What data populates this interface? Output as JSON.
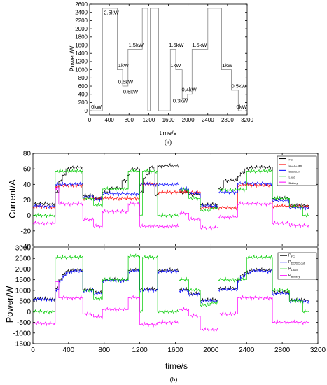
{
  "chart_data": [
    {
      "type": "line",
      "caption": "(a)",
      "xlabel": "time/s",
      "ylabel": "Power/W",
      "xlim": [
        0,
        3200
      ],
      "ylim": [
        -100,
        2600
      ],
      "xticks": [
        "0",
        "400",
        "800",
        "1200",
        "1600",
        "2000",
        "2400",
        "2800",
        "3200"
      ],
      "yticks": [
        "0",
        "200",
        "400",
        "600",
        "800",
        "1000",
        "1200",
        "1400",
        "1600",
        "1800",
        "2000",
        "2200",
        "2400",
        "2600"
      ],
      "series": [
        {
          "name": "",
          "color": "#888888",
          "x": [
            0,
            260,
            260,
            560,
            560,
            670,
            670,
            780,
            780,
            1070,
            1070,
            1180,
            1180,
            1230,
            1230,
            1400,
            1400,
            1640,
            1640,
            1750,
            1750,
            1880,
            1880,
            1990,
            1990,
            2080,
            2080,
            2400,
            2400,
            2680,
            2680,
            2880,
            2880,
            3020,
            3020,
            3100
          ],
          "y": [
            0,
            0,
            2500,
            2500,
            1000,
            1000,
            600,
            600,
            1500,
            1500,
            2500,
            2500,
            0,
            0,
            2500,
            2500,
            0,
            0,
            1500,
            1500,
            1000,
            1000,
            300,
            300,
            400,
            400,
            1500,
            1500,
            2500,
            2500,
            1000,
            1000,
            500,
            500,
            0,
            0
          ]
        }
      ],
      "annotations": [
        {
          "text": "0kW",
          "x": 30,
          "y": 50
        },
        {
          "text": "2.5kW",
          "x": 290,
          "y": 2350
        },
        {
          "text": "1kW",
          "x": 580,
          "y": 1060
        },
        {
          "text": "0.6kW",
          "x": 580,
          "y": 660
        },
        {
          "text": "0.5kW",
          "x": 680,
          "y": 420
        },
        {
          "text": "1.5kW",
          "x": 790,
          "y": 1560
        },
        {
          "text": "1.5kW",
          "x": 1610,
          "y": 1560
        },
        {
          "text": "1kW",
          "x": 1640,
          "y": 1060
        },
        {
          "text": "0.4kW",
          "x": 1870,
          "y": 470
        },
        {
          "text": "0.3kW",
          "x": 1690,
          "y": 200
        },
        {
          "text": "1.5kW",
          "x": 2080,
          "y": 1560
        },
        {
          "text": "1kW",
          "x": 2690,
          "y": 1060
        },
        {
          "text": "0.5kW",
          "x": 2880,
          "y": 560
        },
        {
          "text": "0kW",
          "x": 2980,
          "y": 50
        }
      ]
    },
    {
      "type": "line",
      "caption": "",
      "xlabel": "",
      "ylabel": "Current/A",
      "xlim": [
        0,
        3200
      ],
      "ylim": [
        -40,
        80
      ],
      "yticks": [
        "-40",
        "-20",
        "0",
        "20",
        "40",
        "60",
        "80"
      ],
      "legend_position": "top-right",
      "series": [
        {
          "name": "IFC",
          "color": "#000000",
          "x": [
            0,
            250,
            250,
            290,
            290,
            330,
            330,
            370,
            370,
            420,
            420,
            560,
            560,
            680,
            680,
            780,
            780,
            860,
            860,
            1000,
            1000,
            1060,
            1060,
            1090,
            1090,
            1200,
            1200,
            1240,
            1240,
            1270,
            1270,
            1310,
            1310,
            1370,
            1370,
            1400,
            1400,
            1640,
            1640,
            1750,
            1750,
            1880,
            1880,
            2080,
            2080,
            2140,
            2140,
            2300,
            2300,
            2330,
            2330,
            2380,
            2380,
            2430,
            2430,
            2690,
            2690,
            2880,
            2880,
            3100
          ],
          "y": [
            15,
            15,
            30,
            30,
            44,
            44,
            52,
            52,
            60,
            60,
            62,
            62,
            26,
            26,
            22,
            22,
            30,
            30,
            35,
            35,
            45,
            45,
            52,
            52,
            60,
            60,
            30,
            30,
            48,
            48,
            53,
            53,
            62,
            62,
            26,
            26,
            64,
            64,
            30,
            30,
            27,
            27,
            14,
            14,
            35,
            35,
            45,
            45,
            50,
            50,
            55,
            55,
            60,
            60,
            62,
            62,
            22,
            22,
            13,
            13
          ]
        },
        {
          "name": "IDCDC,out",
          "color": "#ff0000",
          "x": [
            0,
            250,
            250,
            560,
            560,
            1200,
            1200,
            1400,
            1400,
            1880,
            1880,
            2300,
            2300,
            2690,
            2690,
            3100
          ],
          "y": [
            11,
            11,
            38,
            38,
            22,
            22,
            40,
            40,
            30,
            30,
            10,
            10,
            39,
            39,
            12,
            12
          ]
        },
        {
          "name": "IDCDC,in",
          "color": "#0000ff",
          "x": [
            0,
            250,
            250,
            560,
            560,
            680,
            680,
            780,
            780,
            1200,
            1200,
            1400,
            1400,
            1640,
            1640,
            1750,
            1750,
            1880,
            1880,
            2080,
            2080,
            2300,
            2300,
            2690,
            2690,
            2880,
            2880,
            3100
          ],
          "y": [
            12,
            12,
            40,
            40,
            24,
            24,
            20,
            20,
            28,
            28,
            40,
            40,
            40,
            40,
            34,
            34,
            28,
            28,
            12,
            12,
            30,
            30,
            41,
            41,
            19,
            19,
            10,
            10
          ]
        },
        {
          "name": "ILoad",
          "color": "#00cc00",
          "x": [
            0,
            250,
            250,
            560,
            560,
            680,
            680,
            780,
            780,
            1070,
            1070,
            1200,
            1200,
            1230,
            1230,
            1400,
            1400,
            1640,
            1640,
            1750,
            1750,
            1880,
            1880,
            1990,
            1990,
            2080,
            2080,
            2400,
            2400,
            2690,
            2690,
            2880,
            2880,
            3030,
            3030,
            3100
          ],
          "y": [
            0,
            0,
            57,
            57,
            22,
            22,
            13,
            13,
            34,
            34,
            57,
            57,
            0,
            0,
            57,
            57,
            0,
            0,
            33,
            33,
            22,
            22,
            6,
            6,
            9,
            9,
            33,
            33,
            57,
            57,
            22,
            22,
            11,
            11,
            0,
            0
          ]
        },
        {
          "name": "IBattery",
          "color": "#ff00ff",
          "x": [
            0,
            250,
            250,
            290,
            290,
            560,
            560,
            680,
            680,
            780,
            780,
            1070,
            1070,
            1200,
            1200,
            1400,
            1400,
            1640,
            1640,
            1750,
            1750,
            1880,
            1880,
            2080,
            2080,
            2300,
            2300,
            2690,
            2690,
            2880,
            2880,
            3100
          ],
          "y": [
            -10,
            -10,
            35,
            35,
            15,
            15,
            -5,
            -5,
            -14,
            -14,
            5,
            5,
            15,
            15,
            -14,
            -14,
            -14,
            -14,
            3,
            3,
            -5,
            -5,
            -16,
            -16,
            -2,
            -2,
            15,
            15,
            -10,
            -10,
            -13,
            -13
          ]
        }
      ]
    },
    {
      "type": "line",
      "caption": "(b)",
      "xlabel": "time/s",
      "ylabel": "Power/W",
      "xlim": [
        0,
        3200
      ],
      "ylim": [
        -1500,
        3000
      ],
      "xticks": [
        "0",
        "400",
        "800",
        "1200",
        "1600",
        "2000",
        "2400",
        "2800",
        "3200"
      ],
      "yticks": [
        "-1500",
        "-1000",
        "-500",
        "0",
        "500",
        "1000",
        "1500",
        "2000",
        "2500",
        "3000"
      ],
      "legend_position": "top-right",
      "series": [
        {
          "name": "PFC",
          "color": "#000000",
          "x": [
            0,
            250,
            250,
            290,
            290,
            330,
            330,
            370,
            370,
            420,
            420,
            560,
            560,
            680,
            680,
            780,
            780,
            1070,
            1070,
            1200,
            1200,
            1400,
            1400,
            1640,
            1640,
            1750,
            1750,
            1880,
            1880,
            2080,
            2080,
            2300,
            2300,
            2330,
            2330,
            2380,
            2380,
            2430,
            2430,
            2690,
            2690,
            2880,
            2880,
            3100
          ],
          "y": [
            600,
            600,
            1100,
            1100,
            1500,
            1500,
            1750,
            1750,
            1900,
            1900,
            1950,
            1950,
            1050,
            1050,
            900,
            900,
            1500,
            1500,
            1950,
            1950,
            1050,
            1050,
            1950,
            1950,
            1050,
            1050,
            850,
            850,
            550,
            550,
            1100,
            1100,
            1500,
            1500,
            1700,
            1700,
            1850,
            1850,
            1950,
            1950,
            900,
            900,
            550,
            550
          ]
        },
        {
          "name": "PDC/DC,out",
          "color": "#0000ff",
          "x": [
            0,
            250,
            250,
            290,
            290,
            330,
            330,
            370,
            370,
            420,
            420,
            560,
            560,
            680,
            680,
            780,
            780,
            1070,
            1070,
            1200,
            1200,
            1400,
            1400,
            1640,
            1640,
            1750,
            1750,
            1880,
            1880,
            2080,
            2080,
            2300,
            2300,
            2330,
            2330,
            2380,
            2380,
            2430,
            2430,
            2690,
            2690,
            2880,
            2880,
            3100
          ],
          "y": [
            580,
            580,
            1050,
            1050,
            1450,
            1450,
            1700,
            1700,
            1850,
            1850,
            1900,
            1900,
            1000,
            1000,
            850,
            850,
            1450,
            1450,
            1900,
            1900,
            1000,
            1000,
            1900,
            1900,
            1000,
            1000,
            800,
            800,
            500,
            500,
            1050,
            1050,
            1450,
            1450,
            1650,
            1650,
            1800,
            1800,
            1900,
            1900,
            850,
            850,
            500,
            500
          ]
        },
        {
          "name": "PLoad",
          "color": "#00cc00",
          "x": [
            0,
            250,
            250,
            560,
            560,
            680,
            680,
            780,
            780,
            1070,
            1070,
            1200,
            1200,
            1230,
            1230,
            1400,
            1400,
            1640,
            1640,
            1750,
            1750,
            1880,
            1880,
            1990,
            1990,
            2080,
            2080,
            2400,
            2400,
            2690,
            2690,
            2880,
            2880,
            3030,
            3030,
            3100
          ],
          "y": [
            0,
            0,
            2550,
            2550,
            1000,
            1000,
            600,
            600,
            1500,
            1500,
            2600,
            2600,
            0,
            0,
            2550,
            2550,
            0,
            0,
            1500,
            1500,
            1000,
            1000,
            300,
            300,
            400,
            400,
            1500,
            1500,
            2550,
            2550,
            1000,
            1000,
            500,
            500,
            0,
            0
          ]
        },
        {
          "name": "PBattery",
          "color": "#ff00ff",
          "x": [
            0,
            250,
            250,
            290,
            290,
            560,
            560,
            680,
            680,
            780,
            780,
            1070,
            1070,
            1200,
            1200,
            1400,
            1400,
            1640,
            1640,
            1750,
            1750,
            1880,
            1880,
            2080,
            2080,
            2300,
            2300,
            2690,
            2690,
            2880,
            2880,
            3100
          ],
          "y": [
            -550,
            -550,
            1400,
            1400,
            650,
            650,
            -100,
            -100,
            -250,
            -250,
            100,
            100,
            650,
            650,
            -600,
            -600,
            -500,
            -500,
            100,
            100,
            -200,
            -200,
            -850,
            -850,
            -100,
            -100,
            650,
            650,
            -500,
            -500,
            -500,
            -500
          ]
        }
      ]
    }
  ]
}
